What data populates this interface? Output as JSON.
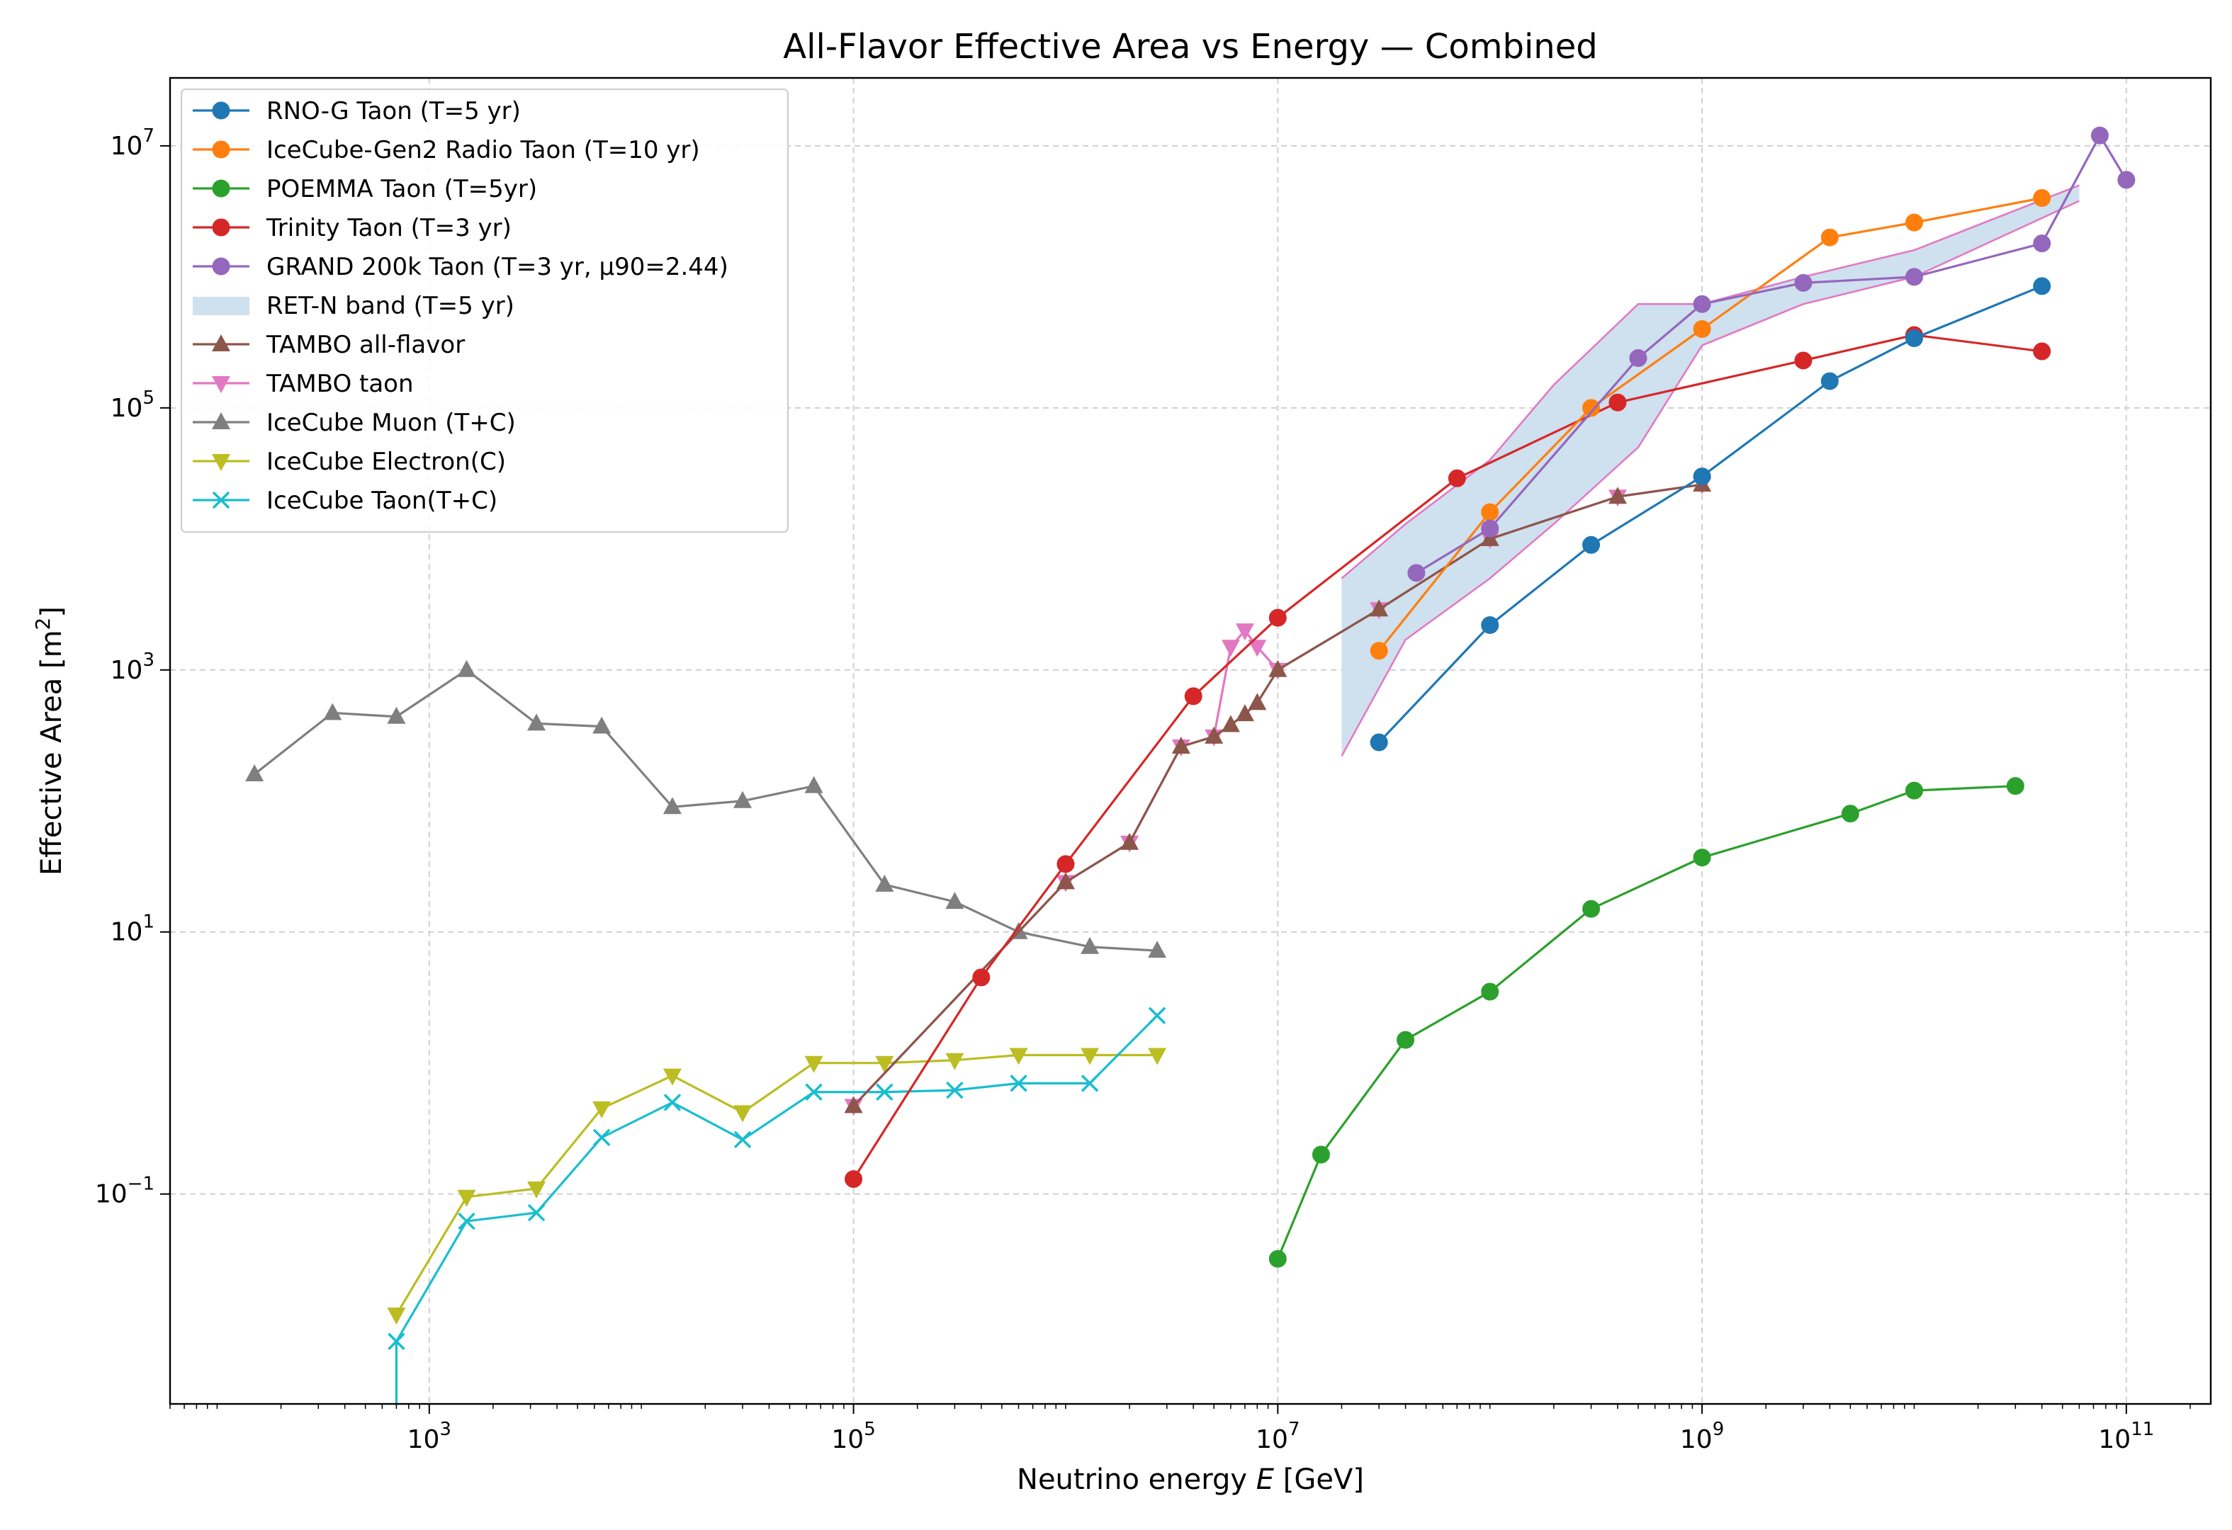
{
  "chart_data": {
    "type": "line",
    "title": "All-Flavor Effective Area vs Energy — Combined",
    "xlabel": "Neutrino energy E [GeV]",
    "xlabel_parts": [
      "Neutrino energy ",
      "E",
      " [GeV]"
    ],
    "ylabel": "Effective Area [m²]",
    "ylabel_parts": [
      "Effective Area [m",
      "2",
      "]"
    ],
    "x_scale": "log",
    "y_scale": "log",
    "xlim": [
      60.0,
      250000000000.0
    ],
    "ylim": [
      0.0025,
      33000000.0
    ],
    "x_ticks": [
      {
        "base": "10",
        "exp": "3",
        "value": 1000
      },
      {
        "base": "10",
        "exp": "5",
        "value": 100000
      },
      {
        "base": "10",
        "exp": "7",
        "value": 10000000
      },
      {
        "base": "10",
        "exp": "9",
        "value": 1000000000
      },
      {
        "base": "10",
        "exp": "11",
        "value": 100000000000
      }
    ],
    "y_ticks": [
      {
        "base": "10",
        "exp": "−1",
        "value": 0.1
      },
      {
        "base": "10",
        "exp": "1",
        "value": 10
      },
      {
        "base": "10",
        "exp": "3",
        "value": 1000
      },
      {
        "base": "10",
        "exp": "5",
        "value": 100000
      },
      {
        "base": "10",
        "exp": "7",
        "value": 10000000
      }
    ],
    "grid": true,
    "legend_position": "top-left",
    "series": [
      {
        "name": "RNO-G Taon (T=5 yr)",
        "color": "#1f77b4",
        "marker": "circle",
        "x": [
          30000000.0,
          100000000.0,
          300000000.0,
          1000000000.0,
          4000000000.0,
          10000000000.0,
          40000000000.0
        ],
        "y": [
          280,
          2200,
          9000,
          30000,
          160000,
          340000,
          850000
        ]
      },
      {
        "name": "IceCube-Gen2 Radio Taon (T=10 yr)",
        "color": "#ff7f0e",
        "marker": "circle",
        "x": [
          30000000.0,
          100000000.0,
          300000000.0,
          1000000000.0,
          4000000000.0,
          10000000000.0,
          40000000000.0
        ],
        "y": [
          1400,
          16000,
          100000,
          400000,
          2000000,
          2600000,
          4000000
        ]
      },
      {
        "name": "POEMMA Taon (T=5yr)",
        "color": "#2ca02c",
        "marker": "circle",
        "x": [
          10000000.0,
          16000000.0,
          40000000.0,
          100000000.0,
          300000000.0,
          1000000000.0,
          5000000000.0,
          10000000000.0,
          30000000000.0
        ],
        "y": [
          0.032,
          0.2,
          1.5,
          3.5,
          15,
          37,
          80,
          120,
          130
        ]
      },
      {
        "name": "Trinity Taon (T=3 yr)",
        "color": "#d62728",
        "marker": "circle",
        "x": [
          100000.0,
          400000.0,
          1000000.0,
          4000000.0,
          10000000.0,
          70000000.0,
          400000000.0,
          3000000000.0,
          10000000000.0,
          40000000000.0
        ],
        "y": [
          0.13,
          4.5,
          33,
          630,
          2500,
          29000,
          110000,
          230000,
          360000,
          270000
        ]
      },
      {
        "name": "GRAND 200k Taon (T=3 yr, µ90=2.44)",
        "color": "#9467bd",
        "marker": "circle",
        "x": [
          45000000.0,
          100000000.0,
          500000000.0,
          1000000000.0,
          3000000000.0,
          10000000000.0,
          40000000000.0,
          75000000000.0,
          100000000000.0
        ],
        "y": [
          5500,
          12000,
          240000,
          620000,
          900000,
          1000000,
          1800000,
          12000000,
          5500000
        ]
      },
      {
        "name": "TAMBO all-flavor",
        "color": "#8c564b",
        "marker": "triangle-up",
        "x": [
          100000.0,
          1000000.0,
          2000000.0,
          3500000.0,
          5000000.0,
          6000000.0,
          7000000.0,
          8000000.0,
          10000000.0,
          30000000.0,
          100000000.0,
          400000000.0,
          1000000000.0
        ],
        "y": [
          0.47,
          24,
          48,
          260,
          310,
          380,
          460,
          560,
          1000,
          2900,
          10000,
          21000,
          26000
        ]
      },
      {
        "name": "TAMBO taon",
        "color": "#e377c2",
        "marker": "triangle-down",
        "x": [
          100000.0,
          1000000.0,
          2000000.0,
          3500000.0,
          5000000.0,
          6000000.0,
          7000000.0,
          8000000.0,
          10000000.0,
          30000000.0,
          100000000.0,
          400000000.0,
          1000000000.0
        ],
        "y": [
          0.47,
          24,
          48,
          260,
          310,
          1500,
          2000,
          1500,
          1000,
          2900,
          10000,
          21000,
          26000
        ]
      },
      {
        "name": "IceCube Muon (T+C)",
        "color": "#7f7f7f",
        "marker": "triangle-up",
        "x": [
          150,
          350,
          700,
          1500,
          3200,
          6500,
          14000,
          30000,
          65000,
          140000,
          300000,
          600000,
          1300000,
          2700000
        ],
        "y": [
          160,
          470,
          440,
          1000,
          390,
          370,
          90,
          100,
          130,
          23,
          17,
          10,
          7.7,
          7.2
        ]
      },
      {
        "name": "IceCube Electron(C)",
        "color": "#bcbd22",
        "marker": "triangle-down",
        "x": [
          700,
          1500,
          3200,
          6500,
          14000,
          30000,
          65000,
          140000,
          300000,
          600000,
          1300000,
          2700000
        ],
        "y": [
          0.012,
          0.095,
          0.11,
          0.45,
          0.8,
          0.42,
          1.0,
          1.0,
          1.05,
          1.15,
          1.15,
          1.15
        ]
      },
      {
        "name": "IceCube Taon(T+C)",
        "color": "#17becf",
        "marker": "x",
        "x": [
          700,
          1500,
          3200,
          6500,
          14000,
          30000,
          65000,
          140000,
          300000,
          600000,
          1300000,
          2700000
        ],
        "y": [
          0.0075,
          0.062,
          0.072,
          0.27,
          0.5,
          0.26,
          0.6,
          0.6,
          0.62,
          0.7,
          0.7,
          2.3
        ]
      }
    ],
    "band": {
      "name": "RET-N band (T=5 yr)",
      "fill": "#cfe0ee",
      "edge": "#e377c2",
      "x": [
        20000000.0,
        40000000.0,
        100000000.0,
        200000000.0,
        500000000.0,
        1000000000.0,
        3000000000.0,
        10000000000.0,
        60000000000.0
      ],
      "upper": [
        5000,
        13000,
        40000,
        150000,
        620000,
        620000,
        1000000,
        1600000,
        5000000
      ],
      "lower": [
        220,
        1700,
        5000,
        13000,
        50000,
        300000,
        620000,
        1000000,
        3800000
      ]
    },
    "icecube_taon_drop": {
      "x": 700,
      "y_from": 0.0075,
      "y_to": 0.0025
    },
    "legend_order": [
      "RNO-G Taon (T=5 yr)",
      "IceCube-Gen2 Radio Taon (T=10 yr)",
      "POEMMA Taon (T=5yr)",
      "Trinity Taon (T=3 yr)",
      "GRAND 200k Taon (T=3 yr, µ90=2.44)",
      "RET-N band (T=5 yr)",
      "TAMBO all-flavor",
      "TAMBO taon",
      "IceCube Muon (T+C)",
      "IceCube Electron(C)",
      "IceCube Taon(T+C)"
    ]
  }
}
